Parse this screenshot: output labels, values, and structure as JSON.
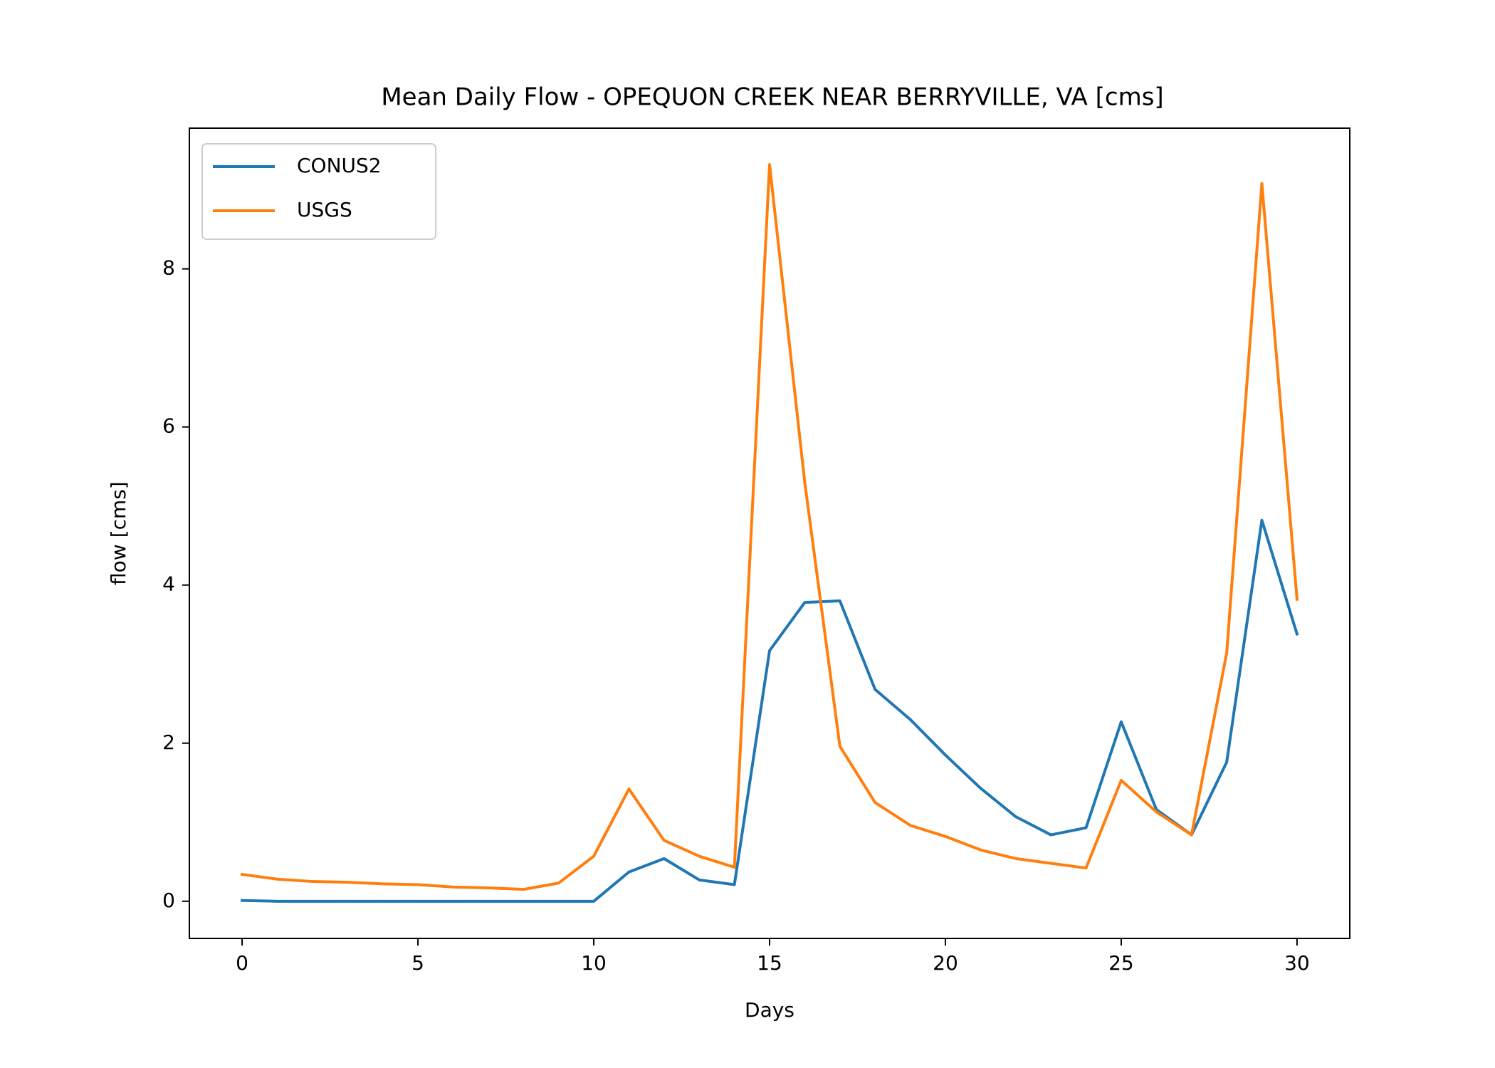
{
  "chart_data": {
    "type": "line",
    "title": "Mean Daily Flow - OPEQUON CREEK NEAR BERRYVILLE, VA [cms]",
    "xlabel": "Days",
    "ylabel": "flow [cms]",
    "xlim": [
      -1.5,
      31.5
    ],
    "ylim": [
      -0.47,
      9.78
    ],
    "xticks": [
      0,
      5,
      10,
      15,
      20,
      25,
      30
    ],
    "yticks": [
      0,
      2,
      4,
      6,
      8
    ],
    "grid": false,
    "legend_position": "top-left",
    "x": [
      0,
      1,
      2,
      3,
      4,
      5,
      6,
      7,
      8,
      9,
      10,
      11,
      12,
      13,
      14,
      15,
      16,
      17,
      18,
      19,
      20,
      21,
      22,
      23,
      24,
      25,
      26,
      27,
      28,
      29,
      30
    ],
    "series": [
      {
        "name": "CONUS2",
        "color": "#1f77b4",
        "values": [
          0.01,
          0.0,
          0.0,
          0.0,
          0.0,
          0.0,
          0.0,
          0.0,
          0.0,
          0.0,
          0.0,
          0.37,
          0.54,
          0.27,
          0.21,
          3.17,
          3.78,
          3.8,
          2.68,
          2.3,
          1.85,
          1.43,
          1.07,
          0.84,
          0.93,
          2.27,
          1.16,
          0.84,
          1.76,
          4.82,
          3.38
        ]
      },
      {
        "name": "USGS",
        "color": "#ff7f0e",
        "values": [
          0.34,
          0.28,
          0.25,
          0.24,
          0.22,
          0.21,
          0.18,
          0.17,
          0.15,
          0.23,
          0.57,
          1.42,
          0.77,
          0.57,
          0.43,
          9.32,
          5.3,
          1.96,
          1.25,
          0.96,
          0.82,
          0.65,
          0.54,
          0.48,
          0.42,
          1.53,
          1.13,
          0.84,
          3.14,
          9.08,
          3.82
        ]
      }
    ]
  }
}
